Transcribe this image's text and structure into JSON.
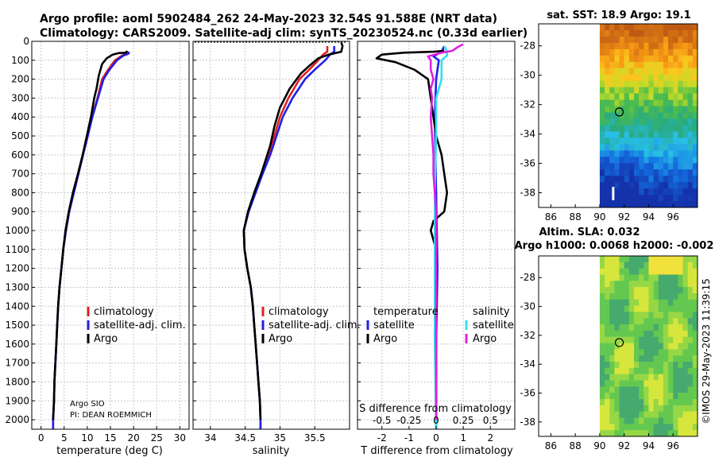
{
  "header": {
    "line1": "Argo profile: aoml 5902484_262 24-May-2023 32.54S 91.588E (NRT data)",
    "line2": "Climatology: CARS2009. Satellite-adj clim: synTS_20230524.nc (0.33d earlier)"
  },
  "colors": {
    "climatology": "#e02020",
    "satellite": "#2020e8",
    "argo": "#000000",
    "sat_salinity": "#30e0f0",
    "argo_salinity": "#e020e0",
    "grid": "#c8c8c8"
  },
  "chart_data": [
    {
      "type": "line",
      "title": "",
      "xlabel": "temperature (deg C)",
      "ylabel": "",
      "xlim": [
        -2,
        32
      ],
      "ylim": [
        2050,
        0
      ],
      "xticks": [
        0,
        5,
        10,
        15,
        20,
        25,
        30
      ],
      "yticks": [
        0,
        100,
        200,
        300,
        400,
        500,
        600,
        700,
        800,
        900,
        1000,
        1100,
        1200,
        1300,
        1400,
        1500,
        1600,
        1700,
        1800,
        1900,
        2000
      ],
      "series": [
        {
          "name": "climatology",
          "color": "#e02020",
          "points": [
            [
              18.8,
              55
            ],
            [
              18.6,
              65
            ],
            [
              17.5,
              75
            ],
            [
              16.0,
              100
            ],
            [
              14.5,
              150
            ],
            [
              13.2,
              200
            ],
            [
              12.2,
              300
            ],
            [
              11.0,
              400
            ],
            [
              10.0,
              500
            ],
            [
              9.0,
              600
            ],
            [
              8.0,
              700
            ],
            [
              7.0,
              800
            ],
            [
              6.0,
              900
            ],
            [
              5.3,
              1000
            ],
            [
              4.8,
              1100
            ],
            [
              4.4,
              1200
            ],
            [
              4.0,
              1300
            ],
            [
              3.7,
              1400
            ],
            [
              3.5,
              1500
            ],
            [
              3.3,
              1600
            ],
            [
              3.1,
              1700
            ],
            [
              2.9,
              1800
            ],
            [
              2.8,
              1900
            ],
            [
              2.6,
              2000
            ],
            [
              2.6,
              2050
            ]
          ]
        },
        {
          "name": "satellite-adj. clim.",
          "color": "#2020e8",
          "points": [
            [
              19.0,
              55
            ],
            [
              18.9,
              65
            ],
            [
              17.8,
              75
            ],
            [
              16.4,
              100
            ],
            [
              14.8,
              150
            ],
            [
              13.5,
              200
            ],
            [
              12.3,
              300
            ],
            [
              11.1,
              400
            ],
            [
              10.1,
              500
            ],
            [
              9.1,
              600
            ],
            [
              8.1,
              700
            ],
            [
              7.1,
              800
            ],
            [
              6.1,
              900
            ],
            [
              5.4,
              1000
            ],
            [
              4.8,
              1100
            ],
            [
              4.4,
              1200
            ],
            [
              4.0,
              1300
            ],
            [
              3.7,
              1400
            ],
            [
              3.5,
              1500
            ],
            [
              3.3,
              1600
            ],
            [
              3.1,
              1700
            ],
            [
              2.9,
              1800
            ],
            [
              2.8,
              1900
            ],
            [
              2.6,
              2000
            ],
            [
              2.6,
              2050
            ]
          ]
        },
        {
          "name": "Argo",
          "color": "#000000",
          "points": [
            [
              18.6,
              50
            ],
            [
              18.5,
              55
            ],
            [
              18.3,
              60
            ],
            [
              16.8,
              62
            ],
            [
              15.5,
              70
            ],
            [
              14.2,
              90
            ],
            [
              13.2,
              120
            ],
            [
              12.5,
              180
            ],
            [
              12.0,
              250
            ],
            [
              11.5,
              300
            ],
            [
              10.8,
              400
            ],
            [
              9.9,
              500
            ],
            [
              9.0,
              600
            ],
            [
              8.0,
              700
            ],
            [
              6.9,
              800
            ],
            [
              6.0,
              900
            ],
            [
              5.3,
              1000
            ],
            [
              4.8,
              1100
            ],
            [
              4.4,
              1200
            ],
            [
              4.0,
              1300
            ],
            [
              3.7,
              1400
            ],
            [
              3.5,
              1500
            ],
            [
              3.3,
              1600
            ],
            [
              3.1,
              1700
            ],
            [
              2.9,
              1800
            ],
            [
              2.8,
              1900
            ],
            [
              2.6,
              2000
            ]
          ]
        }
      ],
      "legend": [
        "climatology",
        "satellite-adj. clim.",
        "Argo"
      ],
      "annotations": [
        "Argo SIO",
        "PI: DEAN ROEMMICH"
      ]
    },
    {
      "type": "line",
      "title": "",
      "xlabel": "salinity",
      "ylabel": "",
      "xlim": [
        33.75,
        36.0
      ],
      "ylim": [
        2050,
        0
      ],
      "xticks": [
        34,
        34.5,
        35,
        35.5
      ],
      "series": [
        {
          "name": "climatology",
          "color": "#e02020",
          "points": [
            [
              35.68,
              25
            ],
            [
              35.68,
              55
            ],
            [
              35.62,
              70
            ],
            [
              35.55,
              100
            ],
            [
              35.42,
              150
            ],
            [
              35.28,
              200
            ],
            [
              35.12,
              300
            ],
            [
              35.0,
              400
            ],
            [
              34.92,
              500
            ],
            [
              34.84,
              600
            ],
            [
              34.74,
              700
            ],
            [
              34.64,
              800
            ],
            [
              34.54,
              900
            ],
            [
              34.48,
              1000
            ],
            [
              34.49,
              1100
            ],
            [
              34.53,
              1200
            ],
            [
              34.58,
              1300
            ],
            [
              34.61,
              1400
            ],
            [
              34.63,
              1500
            ],
            [
              34.65,
              1600
            ],
            [
              34.67,
              1700
            ],
            [
              34.69,
              1800
            ],
            [
              34.71,
              1900
            ],
            [
              34.72,
              2000
            ],
            [
              34.72,
              2050
            ]
          ]
        },
        {
          "name": "satellite-adj. clim.",
          "color": "#2020e8",
          "points": [
            [
              35.78,
              25
            ],
            [
              35.78,
              55
            ],
            [
              35.72,
              70
            ],
            [
              35.65,
              100
            ],
            [
              35.5,
              150
            ],
            [
              35.36,
              200
            ],
            [
              35.18,
              300
            ],
            [
              35.04,
              400
            ],
            [
              34.95,
              500
            ],
            [
              34.86,
              600
            ],
            [
              34.75,
              700
            ],
            [
              34.65,
              800
            ],
            [
              34.55,
              900
            ],
            [
              34.48,
              1000
            ],
            [
              34.49,
              1100
            ],
            [
              34.53,
              1200
            ],
            [
              34.58,
              1300
            ],
            [
              34.61,
              1400
            ],
            [
              34.63,
              1500
            ],
            [
              34.65,
              1600
            ],
            [
              34.67,
              1700
            ],
            [
              34.69,
              1800
            ],
            [
              34.71,
              1900
            ],
            [
              34.72,
              2000
            ],
            [
              34.72,
              2050
            ]
          ]
        },
        {
          "name": "Argo",
          "color": "#000000",
          "points": [
            [
              35.88,
              5
            ],
            [
              35.9,
              25
            ],
            [
              35.88,
              55
            ],
            [
              35.7,
              70
            ],
            [
              35.55,
              90
            ],
            [
              35.42,
              130
            ],
            [
              35.3,
              170
            ],
            [
              35.14,
              250
            ],
            [
              35.0,
              350
            ],
            [
              34.92,
              450
            ],
            [
              34.86,
              550
            ],
            [
              34.8,
              620
            ],
            [
              34.73,
              700
            ],
            [
              34.63,
              800
            ],
            [
              34.54,
              900
            ],
            [
              34.48,
              1000
            ],
            [
              34.49,
              1100
            ],
            [
              34.53,
              1200
            ],
            [
              34.58,
              1300
            ],
            [
              34.61,
              1400
            ],
            [
              34.63,
              1500
            ],
            [
              34.65,
              1600
            ],
            [
              34.67,
              1700
            ],
            [
              34.69,
              1800
            ],
            [
              34.71,
              1900
            ],
            [
              34.72,
              2000
            ]
          ]
        }
      ],
      "legend": [
        "climatology",
        "satellite-adj. clim.",
        "Argo"
      ]
    },
    {
      "type": "line",
      "title": "",
      "xlabel": "T difference from climatology",
      "xlabel_top": "S difference from climatology",
      "ylabel": "",
      "xlim": [
        -2.9,
        2.9
      ],
      "ylim": [
        2050,
        0
      ],
      "xticks": [
        -2,
        -1,
        0,
        1,
        2
      ],
      "top_ticks": [
        "-0.5",
        "-0.25",
        "0",
        "0.25",
        "0.5"
      ],
      "top_tick_values": [
        -2,
        -1,
        0,
        1,
        2
      ],
      "series": [
        {
          "name": "satellite (temperature)",
          "color": "#2020e8",
          "points": [
            [
              0.3,
              25
            ],
            [
              0.2,
              55
            ],
            [
              -0.1,
              80
            ],
            [
              0.1,
              100
            ],
            [
              0.0,
              200
            ],
            [
              -0.05,
              400
            ],
            [
              0.0,
              800
            ],
            [
              0.05,
              1200
            ],
            [
              0.0,
              1600
            ],
            [
              0.0,
              2050
            ]
          ]
        },
        {
          "name": "Argo (temperature)",
          "color": "#000000",
          "points": [
            [
              0.3,
              50
            ],
            [
              -0.1,
              55
            ],
            [
              -1.2,
              60
            ],
            [
              -2.0,
              70
            ],
            [
              -2.2,
              90
            ],
            [
              -1.5,
              110
            ],
            [
              -0.8,
              150
            ],
            [
              -0.3,
              200
            ],
            [
              -0.2,
              300
            ],
            [
              -0.1,
              400
            ],
            [
              0.0,
              500
            ],
            [
              0.2,
              600
            ],
            [
              0.3,
              700
            ],
            [
              0.4,
              800
            ],
            [
              0.3,
              900
            ],
            [
              -0.1,
              950
            ],
            [
              -0.2,
              1000
            ],
            [
              -0.1,
              1050
            ],
            [
              0.0,
              1100
            ],
            [
              0.0,
              1300
            ],
            [
              0.0,
              1600
            ],
            [
              0.0,
              2000
            ]
          ]
        },
        {
          "name": "satellite (salinity)",
          "color": "#30e0f0",
          "points": [
            [
              0.3,
              25
            ],
            [
              0.4,
              55
            ],
            [
              0.4,
              75
            ],
            [
              0.2,
              100
            ],
            [
              0.2,
              200
            ],
            [
              0.0,
              300
            ],
            [
              0.0,
              500
            ],
            [
              -0.05,
              800
            ],
            [
              -0.05,
              1200
            ],
            [
              -0.05,
              1600
            ],
            [
              0.0,
              2050
            ]
          ]
        },
        {
          "name": "Argo (salinity)",
          "color": "#e020e0",
          "points": [
            [
              1.0,
              15
            ],
            [
              0.8,
              30
            ],
            [
              0.6,
              50
            ],
            [
              0.2,
              60
            ],
            [
              -0.3,
              80
            ],
            [
              -0.2,
              100
            ],
            [
              -0.2,
              150
            ],
            [
              -0.1,
              200
            ],
            [
              -0.2,
              250
            ],
            [
              -0.15,
              300
            ],
            [
              -0.2,
              400
            ],
            [
              -0.15,
              500
            ],
            [
              -0.1,
              600
            ],
            [
              -0.1,
              700
            ],
            [
              -0.05,
              800
            ],
            [
              0.0,
              900
            ],
            [
              0.0,
              1000
            ],
            [
              0.0,
              1100
            ],
            [
              0.0,
              1300
            ],
            [
              0.0,
              1600
            ],
            [
              0.0,
              2000
            ]
          ]
        }
      ],
      "legend_headers": [
        "temperature",
        "salinity"
      ],
      "legend": [
        "satellite",
        "Argo",
        "satellite",
        "Argo"
      ]
    },
    {
      "type": "heatmap",
      "title": "sat. SST: 18.9 Argo: 19.1",
      "xlim": [
        85,
        98
      ],
      "ylim": [
        -39,
        -26.5
      ],
      "xticks": [
        86,
        88,
        90,
        92,
        94,
        96
      ],
      "yticks": [
        -28,
        -30,
        -32,
        -34,
        -36,
        -38
      ],
      "data_extent_lon": [
        90,
        98
      ],
      "profile_marker": {
        "lon": 91.6,
        "lat": -32.5
      }
    },
    {
      "type": "heatmap",
      "title": "Altim. SLA: 0.032",
      "subtitle": "Argo h1000: 0.0068 h2000: -0.002",
      "xlim": [
        85,
        98
      ],
      "ylim": [
        -39,
        -26.5
      ],
      "xticks": [
        86,
        88,
        90,
        92,
        94,
        96
      ],
      "yticks": [
        -28,
        -30,
        -32,
        -34,
        -36,
        -38
      ],
      "data_extent_lon": [
        90,
        98
      ],
      "profile_marker": {
        "lon": 91.6,
        "lat": -32.5
      }
    }
  ],
  "timestamp": "©IMOS 29-May-2023 11:39:15"
}
